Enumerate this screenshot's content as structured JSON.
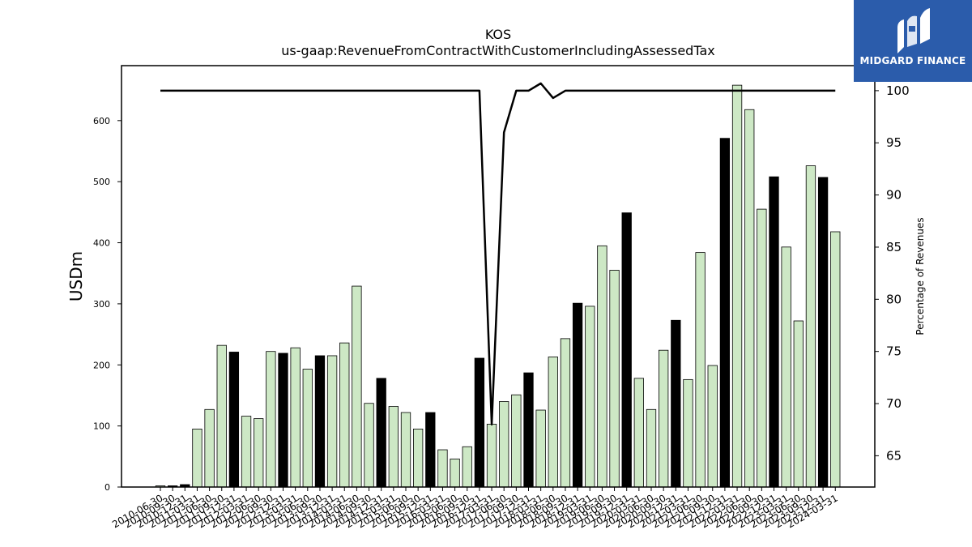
{
  "logo": {
    "text": "MIDGARD FINANCE",
    "icon": "midgard-logo-icon",
    "color": "#2b5cab"
  },
  "chart_data": {
    "type": "bar",
    "title": "KOS",
    "subtitle": "us-gaap:RevenueFromContractWithCustomerIncludingAssessedTax",
    "ylabel": "USDm",
    "ylabel_right": "Percentage of Revenues",
    "xlabel": "",
    "ylim": [
      0,
      690
    ],
    "ylim_right": [
      62,
      102.4
    ],
    "yticks": [
      0,
      100,
      200,
      300,
      400,
      500,
      600
    ],
    "yticks_right": [
      65,
      70,
      75,
      80,
      85,
      90,
      95,
      100
    ],
    "grid": false,
    "colors": {
      "bar_light": "#cde8c5",
      "bar_dark": "#000000",
      "edge": "#000000",
      "line": "#000000"
    },
    "categories": [
      "2010-06-30",
      "2010-09-30",
      "2010-12-31",
      "2011-03-31",
      "2011-06-30",
      "2011-09-30",
      "2011-12-31",
      "2012-03-31",
      "2012-06-30",
      "2012-09-30",
      "2012-12-31",
      "2013-03-31",
      "2013-06-30",
      "2013-09-30",
      "2013-12-31",
      "2014-03-31",
      "2014-06-30",
      "2014-09-30",
      "2014-12-31",
      "2015-03-31",
      "2015-06-30",
      "2015-09-30",
      "2015-12-31",
      "2016-03-31",
      "2016-06-30",
      "2016-09-30",
      "2016-12-31",
      "2017-03-31",
      "2017-06-30",
      "2017-09-30",
      "2017-12-31",
      "2018-03-31",
      "2018-06-30",
      "2018-09-30",
      "2018-12-31",
      "2019-03-31",
      "2019-06-30",
      "2019-09-30",
      "2019-12-31",
      "2020-03-31",
      "2020-06-30",
      "2020-09-30",
      "2020-12-31",
      "2021-03-31",
      "2021-06-30",
      "2021-09-30",
      "2021-12-31",
      "2022-03-31",
      "2022-06-30",
      "2022-09-30",
      "2022-12-31",
      "2023-03-31",
      "2023-06-30",
      "2023-09-30",
      "2023-12-31",
      "2024-03-31"
    ],
    "series": [
      {
        "type": "bar",
        "values": [
          2,
          2,
          4,
          95,
          127,
          232,
          221,
          116,
          112,
          222,
          219,
          228,
          193,
          215,
          215,
          236,
          329,
          137,
          178,
          132,
          122,
          95,
          122,
          61,
          46,
          66,
          211,
          103,
          140,
          151,
          187,
          126,
          213,
          243,
          301,
          296,
          395,
          355,
          449,
          178,
          127,
          224,
          273,
          176,
          384,
          199,
          571,
          658,
          618,
          455,
          508,
          393,
          272,
          526,
          507,
          418
        ],
        "dark": [
          false,
          true,
          true,
          false,
          false,
          false,
          true,
          false,
          false,
          false,
          true,
          false,
          false,
          true,
          false,
          false,
          false,
          false,
          true,
          false,
          false,
          false,
          true,
          false,
          false,
          false,
          true,
          false,
          false,
          false,
          true,
          false,
          false,
          false,
          true,
          false,
          false,
          false,
          true,
          false,
          false,
          false,
          true,
          false,
          false,
          false,
          true,
          false,
          false,
          false,
          true,
          false,
          false,
          false,
          true,
          false
        ]
      },
      {
        "type": "line",
        "axis": "right",
        "values": [
          100,
          100,
          100,
          100,
          100,
          100,
          100,
          100,
          100,
          100,
          100,
          100,
          100,
          100,
          100,
          100,
          100,
          100,
          100,
          100,
          100,
          100,
          100,
          100,
          100,
          100,
          100,
          68,
          96,
          100,
          100,
          100.7,
          99.3,
          100,
          100,
          100,
          100,
          100,
          100,
          100,
          100,
          100,
          100,
          100,
          100,
          100,
          100,
          100,
          100,
          100,
          100,
          100,
          100,
          100,
          100,
          100
        ]
      }
    ]
  }
}
